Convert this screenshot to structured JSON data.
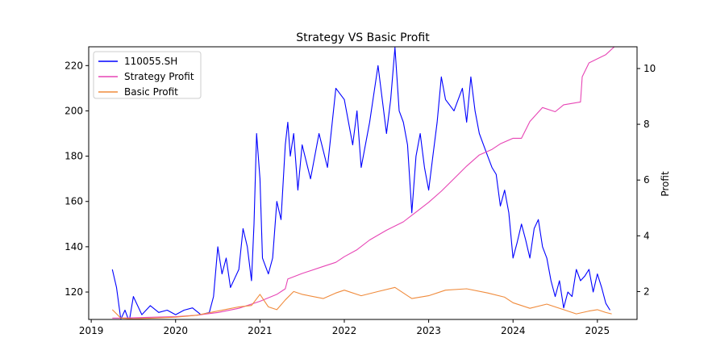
{
  "chart_data": {
    "type": "line",
    "title": "Strategy VS Basic Profit",
    "xlabel": "",
    "ylabel": "",
    "y2label": "Profit",
    "x_ticks": [
      "2019",
      "2020",
      "2021",
      "2022",
      "2023",
      "2024",
      "2025"
    ],
    "x_range": [
      2018.97,
      2025.47
    ],
    "y_left_ticks": [
      "120",
      "140",
      "160",
      "180",
      "200",
      "220"
    ],
    "y_left_range": [
      107.9,
      228.3
    ],
    "y_right_ticks": [
      "2",
      "4",
      "6",
      "8",
      "10"
    ],
    "y_right_range": [
      1.0,
      10.78
    ],
    "legend_position": "top-left",
    "grid": false,
    "series": [
      {
        "name": "110055.SH",
        "axis": "left",
        "color": "#0000ff",
        "x": [
          2019.25,
          2019.3,
          2019.35,
          2019.4,
          2019.45,
          2019.5,
          2019.6,
          2019.7,
          2019.8,
          2019.9,
          2020.0,
          2020.1,
          2020.2,
          2020.3,
          2020.4,
          2020.45,
          2020.5,
          2020.55,
          2020.6,
          2020.65,
          2020.7,
          2020.75,
          2020.8,
          2020.85,
          2020.9,
          2020.93,
          2020.96,
          2021.0,
          2021.03,
          2021.06,
          2021.1,
          2021.15,
          2021.2,
          2021.25,
          2021.3,
          2021.33,
          2021.36,
          2021.4,
          2021.45,
          2021.5,
          2021.6,
          2021.7,
          2021.8,
          2021.9,
          2022.0,
          2022.1,
          2022.15,
          2022.2,
          2022.3,
          2022.4,
          2022.5,
          2022.55,
          2022.6,
          2022.65,
          2022.7,
          2022.75,
          2022.8,
          2022.85,
          2022.9,
          2022.95,
          2023.0,
          2023.05,
          2023.1,
          2023.15,
          2023.2,
          2023.3,
          2023.4,
          2023.45,
          2023.5,
          2023.55,
          2023.6,
          2023.65,
          2023.7,
          2023.75,
          2023.8,
          2023.85,
          2023.9,
          2023.95,
          2024.0,
          2024.05,
          2024.1,
          2024.15,
          2024.2,
          2024.25,
          2024.3,
          2024.35,
          2024.4,
          2024.45,
          2024.5,
          2024.55,
          2024.6,
          2024.65,
          2024.7,
          2024.75,
          2024.8,
          2024.85,
          2024.9,
          2024.95,
          2025.0,
          2025.05,
          2025.1,
          2025.15
        ],
        "y": [
          130,
          122,
          108,
          112,
          107,
          118,
          110,
          114,
          111,
          112,
          110,
          112,
          113,
          110,
          111,
          118,
          140,
          128,
          135,
          122,
          126,
          130,
          148,
          140,
          125,
          150,
          190,
          170,
          135,
          132,
          128,
          135,
          160,
          152,
          185,
          195,
          180,
          190,
          165,
          185,
          170,
          190,
          175,
          210,
          205,
          185,
          200,
          175,
          195,
          220,
          190,
          205,
          228,
          200,
          195,
          185,
          155,
          180,
          190,
          175,
          165,
          180,
          195,
          215,
          205,
          200,
          210,
          195,
          215,
          200,
          190,
          185,
          180,
          175,
          172,
          158,
          165,
          155,
          135,
          142,
          150,
          143,
          135,
          148,
          152,
          140,
          135,
          125,
          118,
          125,
          113,
          120,
          118,
          130,
          125,
          127,
          130,
          120,
          128,
          122,
          115,
          112
        ]
      },
      {
        "name": "Strategy Profit",
        "axis": "right",
        "color": "#e745b5",
        "x": [
          2019.25,
          2019.35,
          2019.5,
          2019.75,
          2020.0,
          2020.25,
          2020.5,
          2020.75,
          2021.0,
          2021.2,
          2021.3,
          2021.33,
          2021.5,
          2021.75,
          2021.9,
          2022.0,
          2022.15,
          2022.3,
          2022.5,
          2022.7,
          2022.85,
          2023.0,
          2023.15,
          2023.3,
          2023.45,
          2023.6,
          2023.75,
          2023.85,
          2024.0,
          2024.1,
          2024.2,
          2024.35,
          2024.5,
          2024.6,
          2024.7,
          2024.8,
          2024.82,
          2024.9,
          2025.0,
          2025.1,
          2025.2
        ],
        "y": [
          1.05,
          1.05,
          1.06,
          1.08,
          1.1,
          1.15,
          1.25,
          1.4,
          1.65,
          1.9,
          2.1,
          2.45,
          2.65,
          2.9,
          3.05,
          3.25,
          3.5,
          3.85,
          4.2,
          4.5,
          4.85,
          5.2,
          5.6,
          6.05,
          6.5,
          6.9,
          7.1,
          7.3,
          7.5,
          7.5,
          8.1,
          8.6,
          8.45,
          8.7,
          8.75,
          8.8,
          9.7,
          10.2,
          10.35,
          10.5,
          10.78
        ]
      },
      {
        "name": "Basic Profit",
        "axis": "right",
        "color": "#f08b3c",
        "x": [
          2019.25,
          2019.35,
          2019.5,
          2019.75,
          2020.0,
          2020.25,
          2020.5,
          2020.75,
          2020.9,
          2021.0,
          2021.1,
          2021.2,
          2021.3,
          2021.4,
          2021.5,
          2021.75,
          2021.9,
          2022.0,
          2022.2,
          2022.4,
          2022.6,
          2022.8,
          2023.0,
          2023.2,
          2023.45,
          2023.7,
          2023.9,
          2024.0,
          2024.2,
          2024.4,
          2024.6,
          2024.75,
          2024.9,
          2025.0,
          2025.1,
          2025.17
        ],
        "y": [
          1.35,
          1.05,
          1.02,
          1.05,
          1.08,
          1.15,
          1.3,
          1.45,
          1.5,
          1.9,
          1.45,
          1.35,
          1.7,
          2.0,
          1.9,
          1.75,
          1.95,
          2.05,
          1.85,
          2.0,
          2.15,
          1.75,
          1.85,
          2.05,
          2.1,
          1.95,
          1.8,
          1.6,
          1.4,
          1.55,
          1.35,
          1.2,
          1.3,
          1.35,
          1.25,
          1.2
        ]
      }
    ]
  }
}
